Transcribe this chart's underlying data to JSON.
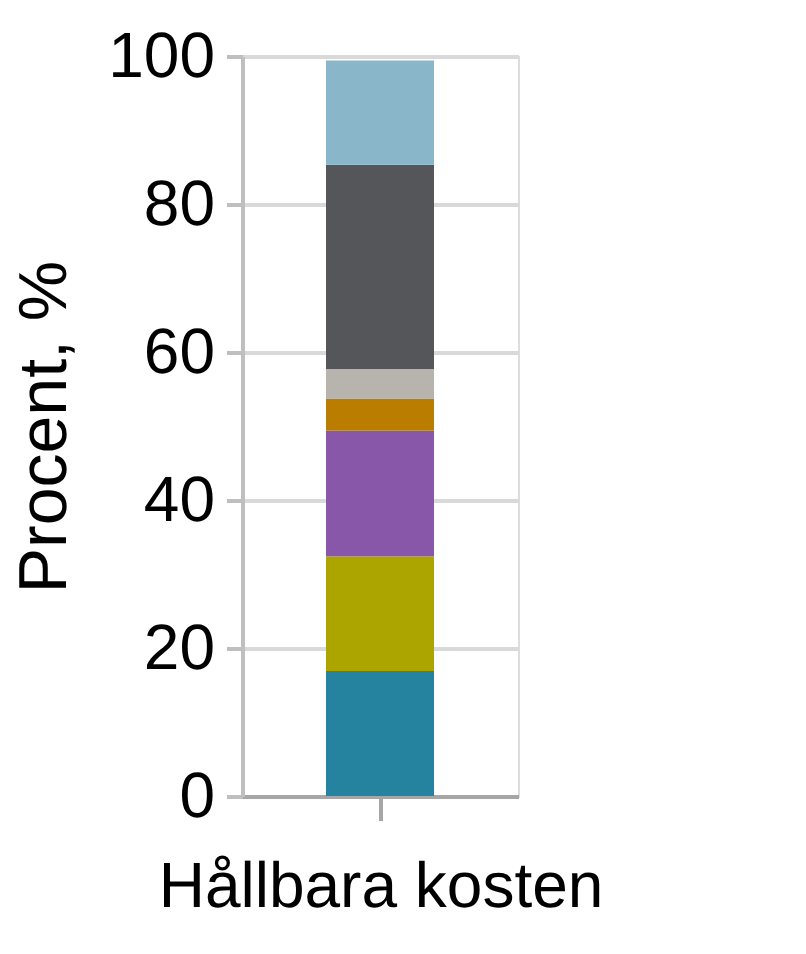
{
  "chart_data": {
    "type": "bar",
    "stacked": true,
    "categories": [
      "Hållbara kosten"
    ],
    "ylabel": "Procent, %",
    "ylim": [
      0,
      100
    ],
    "yticks": [
      0,
      20,
      40,
      60,
      80,
      100
    ],
    "grid": "y",
    "series": [
      {
        "color": "#2683a0",
        "values": [
          16.9
        ]
      },
      {
        "color": "#aca500",
        "values": [
          15.5
        ]
      },
      {
        "color": "#8857aa",
        "values": [
          17.0
        ]
      },
      {
        "color": "#bb7d00",
        "values": [
          4.3
        ]
      },
      {
        "color": "#b6b4ad",
        "values": [
          4.0
        ]
      },
      {
        "color": "#55565a",
        "values": [
          27.6
        ]
      },
      {
        "color": "#89b7c9",
        "values": [
          14.1
        ]
      }
    ]
  }
}
